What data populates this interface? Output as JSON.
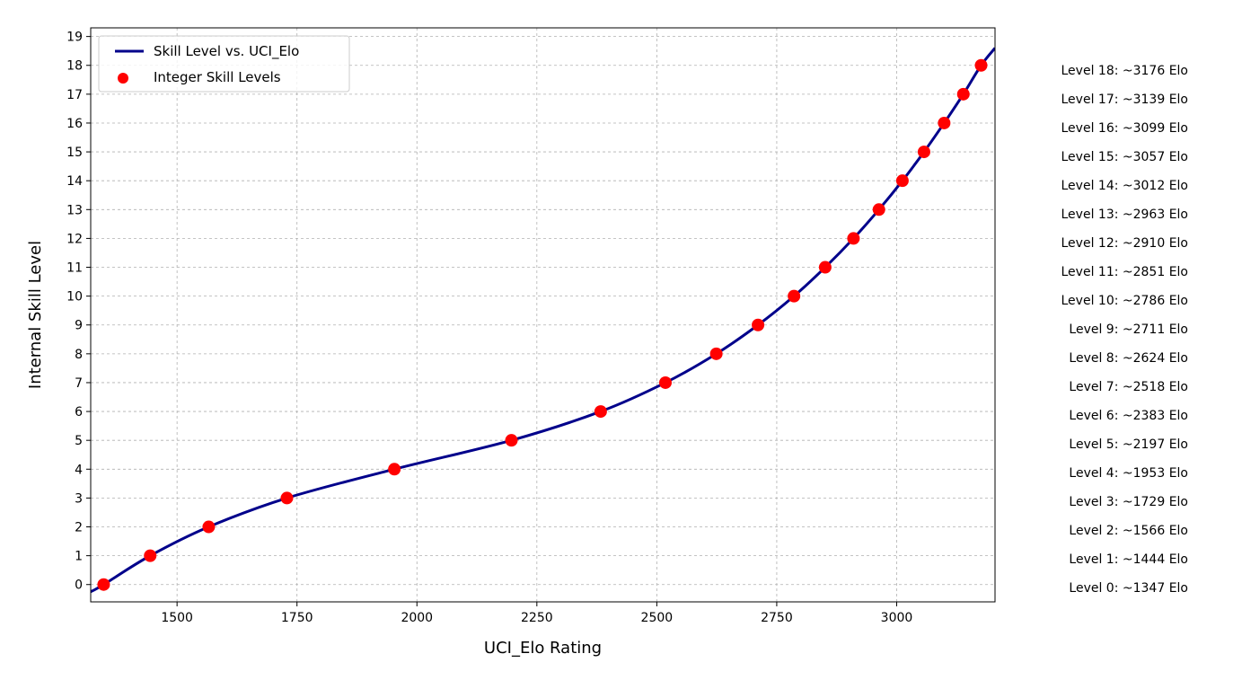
{
  "chart_data": {
    "type": "line",
    "title": "",
    "xlabel": "UCI_Elo Rating",
    "ylabel": "Internal Skill Level",
    "xlim": [
      1320,
      3205
    ],
    "ylim": [
      -0.6,
      19.3
    ],
    "xticks": [
      1500,
      1750,
      2000,
      2250,
      2500,
      2750,
      3000
    ],
    "yticks": [
      0,
      1,
      2,
      3,
      4,
      5,
      6,
      7,
      8,
      9,
      10,
      11,
      12,
      13,
      14,
      15,
      16,
      17,
      18,
      19
    ],
    "grid": true,
    "legend_position": "top-left",
    "series": [
      {
        "name": "Skill Level vs. UCI_Elo",
        "kind": "line",
        "color": "#00008b",
        "x": [
          1320,
          1347,
          1444,
          1566,
          1729,
          1953,
          2197,
          2383,
          2518,
          2624,
          2711,
          2786,
          2851,
          2910,
          2963,
          3012,
          3057,
          3099,
          3139,
          3176,
          3205
        ],
        "y": [
          -0.25,
          0,
          1,
          2,
          3,
          4,
          5,
          6,
          7,
          8,
          9,
          10,
          11,
          12,
          13,
          14,
          15,
          16,
          17,
          18,
          18.6
        ]
      },
      {
        "name": "Integer Skill Levels",
        "kind": "scatter",
        "color": "#ff0000",
        "x": [
          1347,
          1444,
          1566,
          1729,
          1953,
          2197,
          2383,
          2518,
          2624,
          2711,
          2786,
          2851,
          2910,
          2963,
          3012,
          3057,
          3099,
          3139,
          3176
        ],
        "y": [
          0,
          1,
          2,
          3,
          4,
          5,
          6,
          7,
          8,
          9,
          10,
          11,
          12,
          13,
          14,
          15,
          16,
          17,
          18
        ]
      }
    ],
    "annotations": [
      "Level 18: ~3176 Elo",
      "Level 17: ~3139 Elo",
      "Level 16: ~3099 Elo",
      "Level 15: ~3057 Elo",
      "Level 14: ~3012 Elo",
      "Level 13: ~2963 Elo",
      "Level 12: ~2910 Elo",
      "Level 11: ~2851 Elo",
      "Level 10: ~2786 Elo",
      "Level 9: ~2711 Elo",
      "Level 8: ~2624 Elo",
      "Level 7: ~2518 Elo",
      "Level 6: ~2383 Elo",
      "Level 5: ~2197 Elo",
      "Level 4: ~1953 Elo",
      "Level 3: ~1729 Elo",
      "Level 2: ~1566 Elo",
      "Level 1: ~1444 Elo",
      "Level 0: ~1347 Elo"
    ]
  }
}
